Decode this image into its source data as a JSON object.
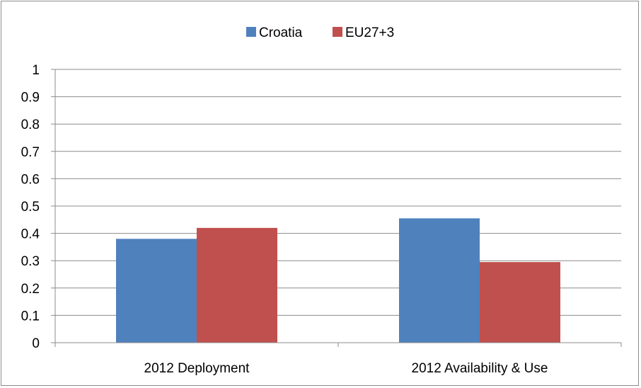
{
  "chart_data": {
    "type": "bar",
    "title": "",
    "xlabel": "",
    "ylabel": "",
    "categories": [
      "2012 Deployment",
      "2012 Availability & Use"
    ],
    "series": [
      {
        "name": "Croatia",
        "values": [
          0.38,
          0.455
        ],
        "color": "#4f81bd"
      },
      {
        "name": "EU27+3",
        "values": [
          0.42,
          0.295
        ],
        "color": "#c0504d"
      }
    ],
    "ylim": [
      0,
      1
    ],
    "yticks": [
      "0",
      "0.1",
      "0.2",
      "0.3",
      "0.4",
      "0.5",
      "0.6",
      "0.7",
      "0.8",
      "0.9",
      "1"
    ],
    "grid": true,
    "legend_position": "top"
  }
}
